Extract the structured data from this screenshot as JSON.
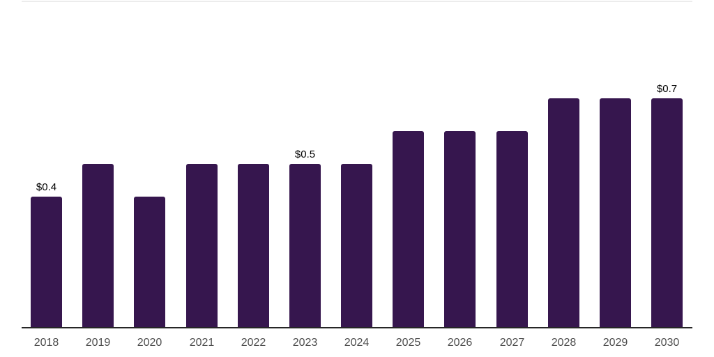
{
  "chart_data": {
    "type": "bar",
    "title": "",
    "xlabel": "",
    "ylabel": "",
    "categories": [
      "2018",
      "2019",
      "2020",
      "2021",
      "2022",
      "2023",
      "2024",
      "2025",
      "2026",
      "2027",
      "2028",
      "2029",
      "2030"
    ],
    "values": [
      0.4,
      0.5,
      0.4,
      0.5,
      0.5,
      0.5,
      0.5,
      0.6,
      0.6,
      0.6,
      0.7,
      0.7,
      0.7
    ],
    "data_labels": [
      {
        "index": 0,
        "text": "$0.4"
      },
      {
        "index": 5,
        "text": "$0.5"
      },
      {
        "index": 12,
        "text": "$0.7"
      }
    ],
    "ylim": [
      0,
      1.0
    ],
    "grid": false,
    "legend": false,
    "y_axis_visible": false,
    "colors": {
      "bar": "#36164E",
      "axis_line": "#262626",
      "plot_top_border": "#ECECEC",
      "tick_label": "#4D4D4D",
      "data_label": "#000000",
      "background": "#FFFFFF"
    }
  }
}
